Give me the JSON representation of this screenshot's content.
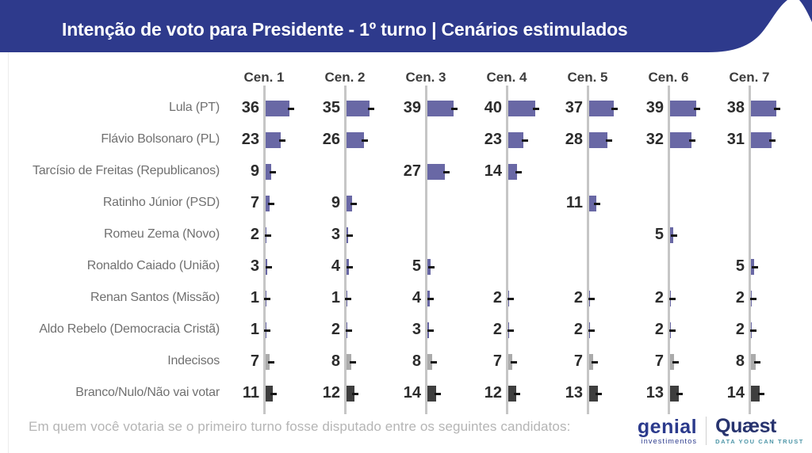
{
  "header": {
    "title": "Intenção de voto para Presidente - 1º turno | Cenários estimulados",
    "bg_color": "#2e3a8c"
  },
  "chart_data": {
    "type": "bar",
    "orientation": "horizontal",
    "title": "Intenção de voto para Presidente - 1º turno | Cenários estimulados",
    "scenarios": [
      "Cen. 1",
      "Cen. 2",
      "Cen. 3",
      "Cen. 4",
      "Cen. 5",
      "Cen. 6",
      "Cen. 7"
    ],
    "value_unit": "%",
    "rows": [
      {
        "label": "Lula (PT)",
        "type": "candidate",
        "values": [
          36,
          35,
          39,
          40,
          37,
          39,
          38
        ]
      },
      {
        "label": "Flávio Bolsonaro (PL)",
        "type": "candidate",
        "values": [
          23,
          26,
          null,
          23,
          28,
          32,
          31
        ]
      },
      {
        "label": "Tarcísio de Freitas (Republicanos)",
        "type": "candidate",
        "values": [
          9,
          null,
          27,
          14,
          null,
          null,
          null
        ]
      },
      {
        "label": "Ratinho Júnior (PSD)",
        "type": "candidate",
        "values": [
          7,
          9,
          null,
          null,
          11,
          null,
          null
        ]
      },
      {
        "label": "Romeu Zema (Novo)",
        "type": "candidate",
        "values": [
          2,
          3,
          null,
          null,
          null,
          5,
          null
        ]
      },
      {
        "label": "Ronaldo Caiado (União)",
        "type": "candidate",
        "values": [
          3,
          4,
          5,
          null,
          null,
          null,
          5
        ]
      },
      {
        "label": "Renan Santos (Missão)",
        "type": "candidate",
        "values": [
          1,
          1,
          4,
          2,
          2,
          2,
          2
        ]
      },
      {
        "label": "Aldo Rebelo (Democracia Cristã)",
        "type": "candidate",
        "values": [
          1,
          2,
          3,
          2,
          2,
          2,
          2
        ]
      },
      {
        "label": "Indecisos",
        "type": "undecided",
        "values": [
          7,
          8,
          8,
          7,
          7,
          7,
          8
        ]
      },
      {
        "label": "Branco/Nulo/Não vai votar",
        "type": "blank",
        "values": [
          11,
          12,
          14,
          12,
          13,
          13,
          14
        ]
      }
    ],
    "colors": {
      "candidate": "#6968a5",
      "undecided": "#ababab",
      "blank": "#3e3e3e",
      "whisker": "#161616",
      "axis": "#c6c6c6"
    },
    "notes": "each bar carries a small black error whisker at its end"
  },
  "footer": {
    "question": "Em quem você votaria se o primeiro turno fosse disputado entre os seguintes candidatos:"
  },
  "logos": {
    "genial": {
      "name": "genial",
      "sub": "investimentos"
    },
    "quaest": {
      "name": "Quæst",
      "tagline": "DATA YOU CAN TRUST"
    }
  }
}
